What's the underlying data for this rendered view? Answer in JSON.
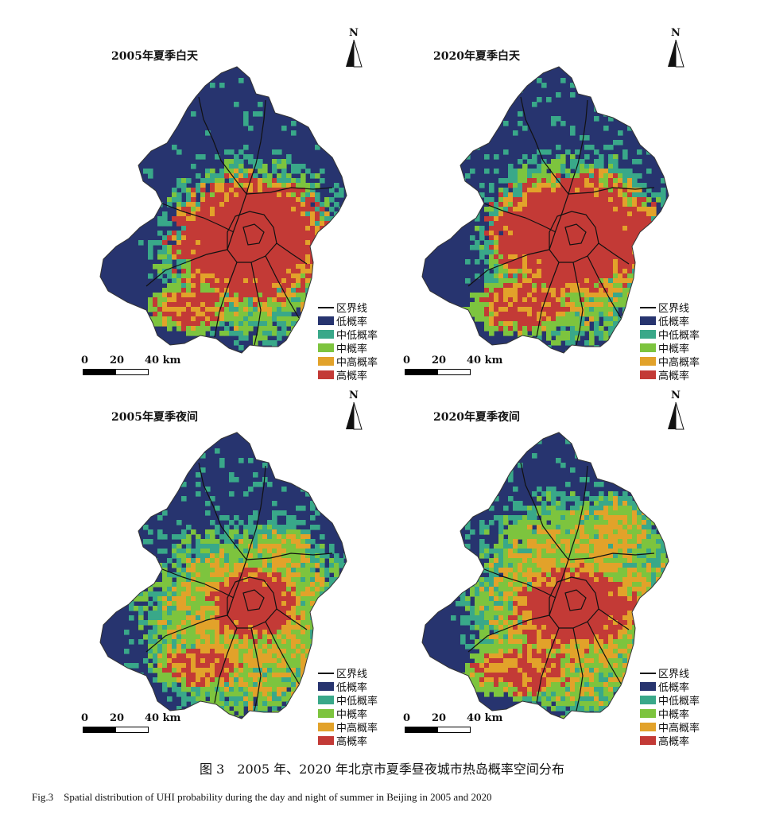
{
  "panels": [
    {
      "title": "2005年夏季白天",
      "north": "N"
    },
    {
      "title": "2020年夏季白天",
      "north": "N"
    },
    {
      "title": "2005年夏季夜间",
      "north": "N"
    },
    {
      "title": "2020年夏季夜间",
      "north": "N"
    }
  ],
  "legend": {
    "boundary": "区界线",
    "classes": [
      {
        "label": "低概率",
        "color": "#27346f"
      },
      {
        "label": "中低概率",
        "color": "#39a889"
      },
      {
        "label": "中概率",
        "color": "#7dc43e"
      },
      {
        "label": "中高概率",
        "color": "#e2a22a"
      },
      {
        "label": "高概率",
        "color": "#c33a36"
      }
    ]
  },
  "scalebar": {
    "ticks": [
      "0",
      "20",
      "40 km"
    ]
  },
  "caption": {
    "cn": "图 3　2005 年、2020 年北京市夏季昼夜城市热岛概率空间分布",
    "en": "Fig.3　Spatial distribution of UHI probability during the day and night of summer in Beijing in 2005 and 2020"
  }
}
